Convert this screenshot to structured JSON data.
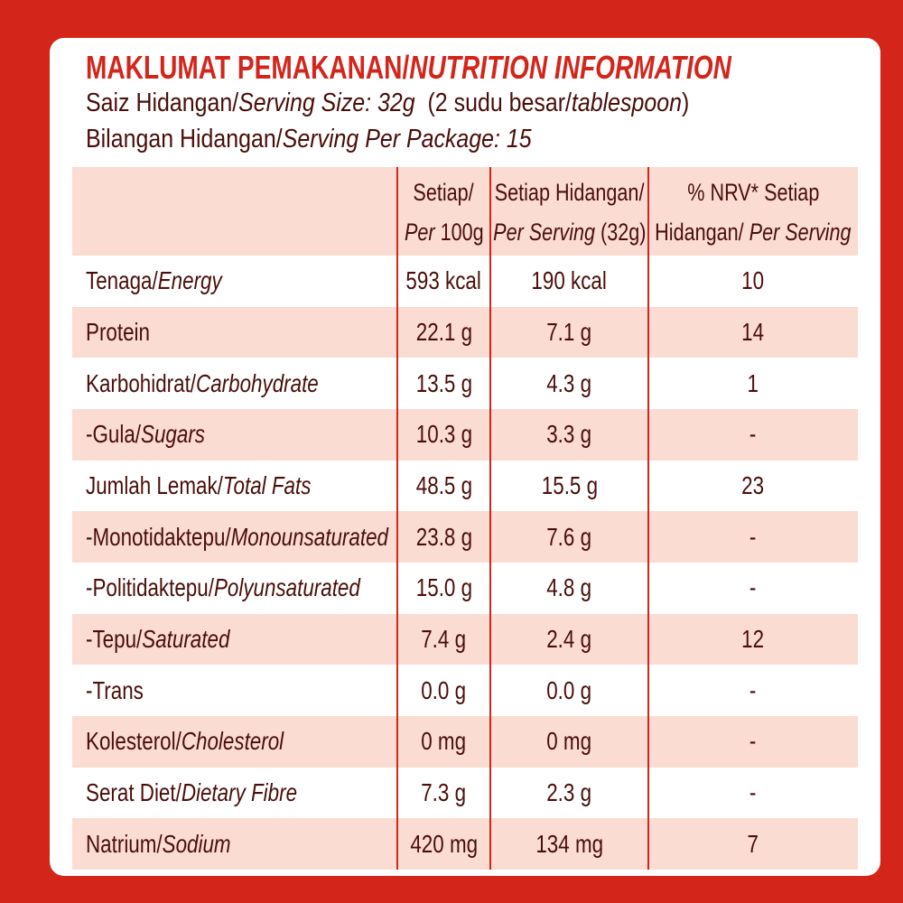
{
  "header": {
    "title": [
      {
        "text": "MAKLUMAT PEMAKANAN/"
      },
      {
        "text": "NUTRITION INFORMATION",
        "italic": true
      }
    ],
    "serving_size": [
      {
        "text": "Saiz Hidangan/"
      },
      {
        "text": "Serving Size: 32g",
        "italic": true
      },
      {
        "text": "  (2 sudu besar/"
      },
      {
        "text": "tablespoon",
        "italic": true
      },
      {
        "text": ")"
      }
    ],
    "servings_per_package": [
      {
        "text": "Bilangan Hidangan/"
      },
      {
        "text": "Serving Per Package: 15",
        "italic": true
      }
    ]
  },
  "table": {
    "columns": [
      [],
      [
        [
          {
            "text": "Setiap/"
          }
        ],
        [
          {
            "text": "Per",
            "italic": true
          },
          {
            "text": " 100g"
          }
        ]
      ],
      [
        [
          {
            "text": "Setiap Hidangan/"
          }
        ],
        [
          {
            "text": "Per Serving",
            "italic": true
          },
          {
            "text": " (32g)"
          }
        ]
      ],
      [
        [
          {
            "text": "% NRV* Setiap"
          }
        ],
        [
          {
            "text": "Hidangan/"
          },
          {
            "text": " Per Serving",
            "italic": true
          }
        ]
      ]
    ],
    "rows": [
      {
        "nutrient": [
          {
            "text": "Tenaga/"
          },
          {
            "text": "Energy",
            "italic": true
          }
        ],
        "per_100g": "593 kcal",
        "per_serving": "190 kcal",
        "nrv": "10"
      },
      {
        "nutrient": [
          {
            "text": "Protein"
          }
        ],
        "per_100g": "22.1 g",
        "per_serving": "7.1 g",
        "nrv": "14"
      },
      {
        "nutrient": [
          {
            "text": "Karbohidrat/"
          },
          {
            "text": "Carbohydrate",
            "italic": true
          }
        ],
        "per_100g": "13.5 g",
        "per_serving": "4.3 g",
        "nrv": "1"
      },
      {
        "nutrient": [
          {
            "text": "-Gula/"
          },
          {
            "text": "Sugars",
            "italic": true
          }
        ],
        "per_100g": "10.3 g",
        "per_serving": "3.3 g",
        "nrv": "-"
      },
      {
        "nutrient": [
          {
            "text": "Jumlah Lemak/"
          },
          {
            "text": "Total Fats",
            "italic": true
          }
        ],
        "per_100g": "48.5 g",
        "per_serving": "15.5 g",
        "nrv": "23"
      },
      {
        "nutrient": [
          {
            "text": "-Monotidaktepu/"
          },
          {
            "text": "Monounsaturated",
            "italic": true
          }
        ],
        "per_100g": "23.8 g",
        "per_serving": "7.6 g",
        "nrv": "-"
      },
      {
        "nutrient": [
          {
            "text": "-Politidaktepu/"
          },
          {
            "text": "Polyunsaturated",
            "italic": true
          }
        ],
        "per_100g": "15.0 g",
        "per_serving": "4.8 g",
        "nrv": "-"
      },
      {
        "nutrient": [
          {
            "text": "-Tepu/"
          },
          {
            "text": "Saturated",
            "italic": true
          }
        ],
        "per_100g": "7.4 g",
        "per_serving": "2.4 g",
        "nrv": "12"
      },
      {
        "nutrient": [
          {
            "text": "-Trans"
          }
        ],
        "per_100g": "0.0 g",
        "per_serving": "0.0 g",
        "nrv": "-"
      },
      {
        "nutrient": [
          {
            "text": "Kolesterol/"
          },
          {
            "text": "Cholesterol",
            "italic": true
          }
        ],
        "per_100g": "0 mg",
        "per_serving": "0 mg",
        "nrv": "-"
      },
      {
        "nutrient": [
          {
            "text": "Serat Diet/"
          },
          {
            "text": "Dietary Fibre",
            "italic": true
          }
        ],
        "per_100g": "7.3 g",
        "per_serving": "2.3 g",
        "nrv": "-"
      },
      {
        "nutrient": [
          {
            "text": "Natrium/"
          },
          {
            "text": "Sodium",
            "italic": true
          }
        ],
        "per_100g": "420 mg",
        "per_serving": "134 mg",
        "nrv": "7"
      }
    ]
  }
}
